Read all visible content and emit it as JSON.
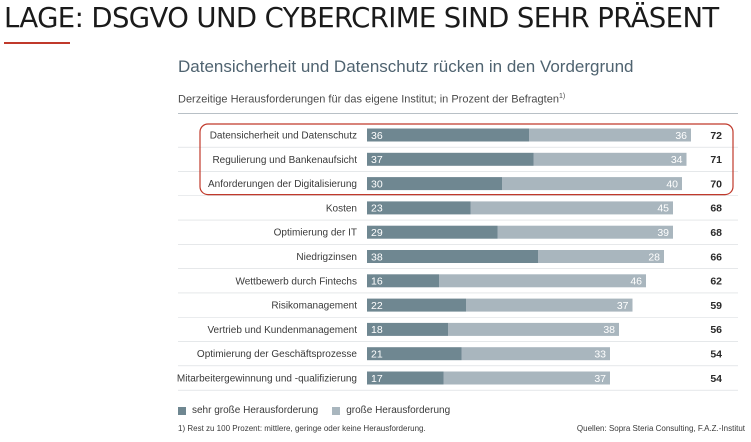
{
  "slide_title": "LAGE: DSGVO UND CYBERCRIME SIND SEHR PRÄSENT",
  "chart_title": "Datensicherheit und Datenschutz rücken in den Vordergrund",
  "subtitle": "Derzeitige Herausforderungen für das eigene Institut; in Prozent der Befragten",
  "subtitle_note_marker": "1)",
  "legend": {
    "series1": "sehr große Herausforderung",
    "series2": "große Herausforderung"
  },
  "footnote": "1)   Rest zu 100 Prozent: mittlere, geringe oder keine Herausforderung.",
  "source": "Quellen: Sopra Steria Consulting, F.A.Z.-Institut",
  "colors": {
    "series1": "#6f8791",
    "series2": "#a9b6be",
    "highlight": "#c0392b",
    "text": "#3a3a3a"
  },
  "chart_data": {
    "type": "bar",
    "orientation": "horizontal",
    "stacked": true,
    "categories": [
      "Datensicherheit und Datenschutz",
      "Regulierung und Bankenaufsicht",
      "Anforderungen der Digitalisierung",
      "Kosten",
      "Optimierung der IT",
      "Niedrigzinsen",
      "Wettbewerb durch Fintechs",
      "Risikomanagement",
      "Vertrieb und Kundenmanagement",
      "Optimierung der Geschäftsprozesse",
      "Mitarbeitergewinnung und -qualifizierung"
    ],
    "series": [
      {
        "name": "sehr große Herausforderung",
        "values": [
          36,
          37,
          30,
          23,
          29,
          38,
          16,
          22,
          18,
          21,
          17
        ]
      },
      {
        "name": "große Herausforderung",
        "values": [
          36,
          34,
          40,
          45,
          39,
          28,
          46,
          37,
          38,
          33,
          37
        ]
      }
    ],
    "totals": [
      72,
      71,
      70,
      68,
      68,
      66,
      62,
      59,
      56,
      54,
      54
    ],
    "highlighted_rows": [
      0,
      1,
      2
    ],
    "xlim": [
      0,
      72
    ],
    "grid": false
  }
}
